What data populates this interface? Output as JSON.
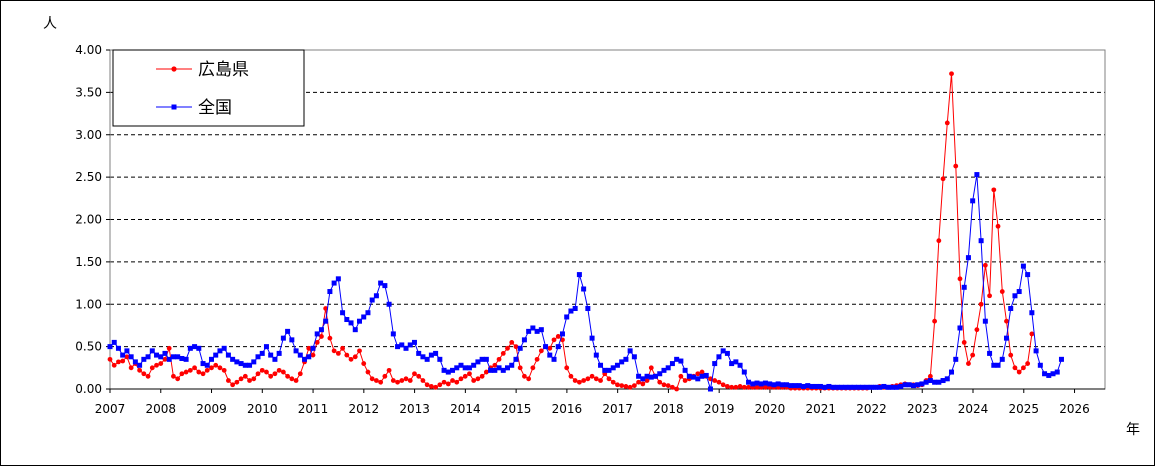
{
  "chart_data": {
    "type": "line",
    "y_unit": "人",
    "x_unit": "年",
    "ylim": [
      0,
      4
    ],
    "y_ticks": [
      "0.00",
      "0.50",
      "1.00",
      "1.50",
      "2.00",
      "2.50",
      "3.00",
      "3.50",
      "4.00"
    ],
    "x_tick_labels": [
      "2007",
      "2008",
      "2009",
      "2010",
      "2011",
      "2012",
      "2013",
      "2014",
      "2015",
      "2016",
      "2017",
      "2018",
      "2019",
      "2020",
      "2021",
      "2022",
      "2023",
      "2024",
      "2025",
      "2026"
    ],
    "grid": "horizontal-dashed",
    "legend_position": "top-left",
    "series": [
      {
        "name": "広島県",
        "color": "#ff0000",
        "marker": "circle",
        "x_start": 2007.0,
        "x_step": 0.0833,
        "values": [
          0.35,
          0.28,
          0.32,
          0.33,
          0.38,
          0.25,
          0.3,
          0.22,
          0.18,
          0.15,
          0.25,
          0.28,
          0.3,
          0.35,
          0.48,
          0.15,
          0.12,
          0.18,
          0.2,
          0.22,
          0.25,
          0.2,
          0.18,
          0.22,
          0.25,
          0.28,
          0.25,
          0.22,
          0.1,
          0.05,
          0.08,
          0.12,
          0.15,
          0.1,
          0.12,
          0.18,
          0.22,
          0.2,
          0.15,
          0.18,
          0.22,
          0.2,
          0.15,
          0.12,
          0.1,
          0.18,
          0.32,
          0.48,
          0.4,
          0.55,
          0.62,
          0.95,
          0.6,
          0.45,
          0.42,
          0.48,
          0.4,
          0.35,
          0.38,
          0.45,
          0.3,
          0.2,
          0.12,
          0.1,
          0.08,
          0.15,
          0.22,
          0.1,
          0.08,
          0.1,
          0.12,
          0.1,
          0.18,
          0.15,
          0.1,
          0.05,
          0.03,
          0.02,
          0.05,
          0.08,
          0.06,
          0.1,
          0.08,
          0.12,
          0.15,
          0.18,
          0.1,
          0.12,
          0.15,
          0.2,
          0.25,
          0.28,
          0.35,
          0.42,
          0.48,
          0.55,
          0.5,
          0.25,
          0.15,
          0.12,
          0.25,
          0.35,
          0.45,
          0.5,
          0.48,
          0.58,
          0.62,
          0.58,
          0.25,
          0.15,
          0.1,
          0.08,
          0.1,
          0.12,
          0.15,
          0.12,
          0.1,
          0.18,
          0.12,
          0.08,
          0.05,
          0.04,
          0.03,
          0.02,
          0.04,
          0.08,
          0.06,
          0.1,
          0.25,
          0.15,
          0.08,
          0.05,
          0.04,
          0.02,
          0.0,
          0.15,
          0.1,
          0.12,
          0.15,
          0.18,
          0.2,
          0.15,
          0.12,
          0.1,
          0.08,
          0.05,
          0.03,
          0.02,
          0.02,
          0.03,
          0.02,
          0.02,
          0.02,
          0.02,
          0.02,
          0.02,
          0.02,
          0.02,
          0.02,
          0.02,
          0.02,
          0.01,
          0.01,
          0.01,
          0.01,
          0.01,
          0.01,
          0.01,
          0.01,
          0.01,
          0.01,
          0.01,
          0.01,
          0.01,
          0.01,
          0.01,
          0.01,
          0.01,
          0.01,
          0.01,
          0.02,
          0.02,
          0.03,
          0.02,
          0.02,
          0.03,
          0.04,
          0.05,
          0.06,
          0.05,
          0.05,
          0.04,
          0.05,
          0.1,
          0.15,
          0.8,
          1.75,
          2.48,
          3.14,
          3.72,
          2.63,
          1.3,
          0.55,
          0.3,
          0.4,
          0.7,
          1.0,
          1.46,
          1.1,
          2.35,
          1.92,
          1.15,
          0.8,
          0.4,
          0.25,
          0.2,
          0.25,
          0.3,
          0.65
        ]
      },
      {
        "name": "全国",
        "color": "#0000ff",
        "marker": "square",
        "x_start": 2007.0,
        "x_step": 0.0833,
        "values": [
          0.5,
          0.55,
          0.48,
          0.4,
          0.45,
          0.38,
          0.32,
          0.28,
          0.35,
          0.38,
          0.45,
          0.4,
          0.38,
          0.42,
          0.35,
          0.38,
          0.38,
          0.36,
          0.35,
          0.48,
          0.5,
          0.48,
          0.3,
          0.28,
          0.35,
          0.4,
          0.45,
          0.48,
          0.4,
          0.35,
          0.32,
          0.3,
          0.28,
          0.28,
          0.32,
          0.38,
          0.42,
          0.5,
          0.4,
          0.35,
          0.42,
          0.6,
          0.68,
          0.58,
          0.45,
          0.4,
          0.35,
          0.38,
          0.48,
          0.65,
          0.7,
          0.8,
          1.15,
          1.25,
          1.3,
          0.9,
          0.82,
          0.78,
          0.7,
          0.8,
          0.85,
          0.9,
          1.05,
          1.1,
          1.25,
          1.22,
          1.0,
          0.65,
          0.5,
          0.52,
          0.48,
          0.52,
          0.55,
          0.42,
          0.38,
          0.35,
          0.4,
          0.42,
          0.35,
          0.22,
          0.2,
          0.22,
          0.25,
          0.28,
          0.25,
          0.25,
          0.28,
          0.32,
          0.35,
          0.35,
          0.22,
          0.22,
          0.25,
          0.22,
          0.25,
          0.28,
          0.35,
          0.48,
          0.58,
          0.68,
          0.72,
          0.68,
          0.7,
          0.5,
          0.4,
          0.35,
          0.5,
          0.65,
          0.85,
          0.92,
          0.95,
          1.35,
          1.18,
          0.95,
          0.6,
          0.4,
          0.28,
          0.22,
          0.22,
          0.25,
          0.28,
          0.32,
          0.35,
          0.45,
          0.38,
          0.15,
          0.12,
          0.15,
          0.14,
          0.15,
          0.18,
          0.22,
          0.25,
          0.3,
          0.35,
          0.33,
          0.22,
          0.15,
          0.14,
          0.12,
          0.15,
          0.16,
          0.0,
          0.3,
          0.38,
          0.45,
          0.42,
          0.3,
          0.32,
          0.28,
          0.2,
          0.08,
          0.06,
          0.07,
          0.06,
          0.07,
          0.06,
          0.05,
          0.06,
          0.05,
          0.05,
          0.04,
          0.04,
          0.04,
          0.03,
          0.04,
          0.03,
          0.03,
          0.03,
          0.02,
          0.03,
          0.02,
          0.02,
          0.02,
          0.02,
          0.02,
          0.02,
          0.02,
          0.02,
          0.02,
          0.02,
          0.02,
          0.02,
          0.03,
          0.02,
          0.02,
          0.02,
          0.03,
          0.05,
          0.05,
          0.04,
          0.05,
          0.06,
          0.08,
          0.1,
          0.08,
          0.08,
          0.1,
          0.12,
          0.2,
          0.35,
          0.72,
          1.2,
          1.55,
          2.22,
          2.53,
          1.75,
          0.8,
          0.42,
          0.28,
          0.28,
          0.35,
          0.6,
          0.95,
          1.1,
          1.15,
          1.45,
          1.35,
          0.9,
          0.45,
          0.28,
          0.18,
          0.16,
          0.18,
          0.2,
          0.35
        ]
      }
    ]
  }
}
